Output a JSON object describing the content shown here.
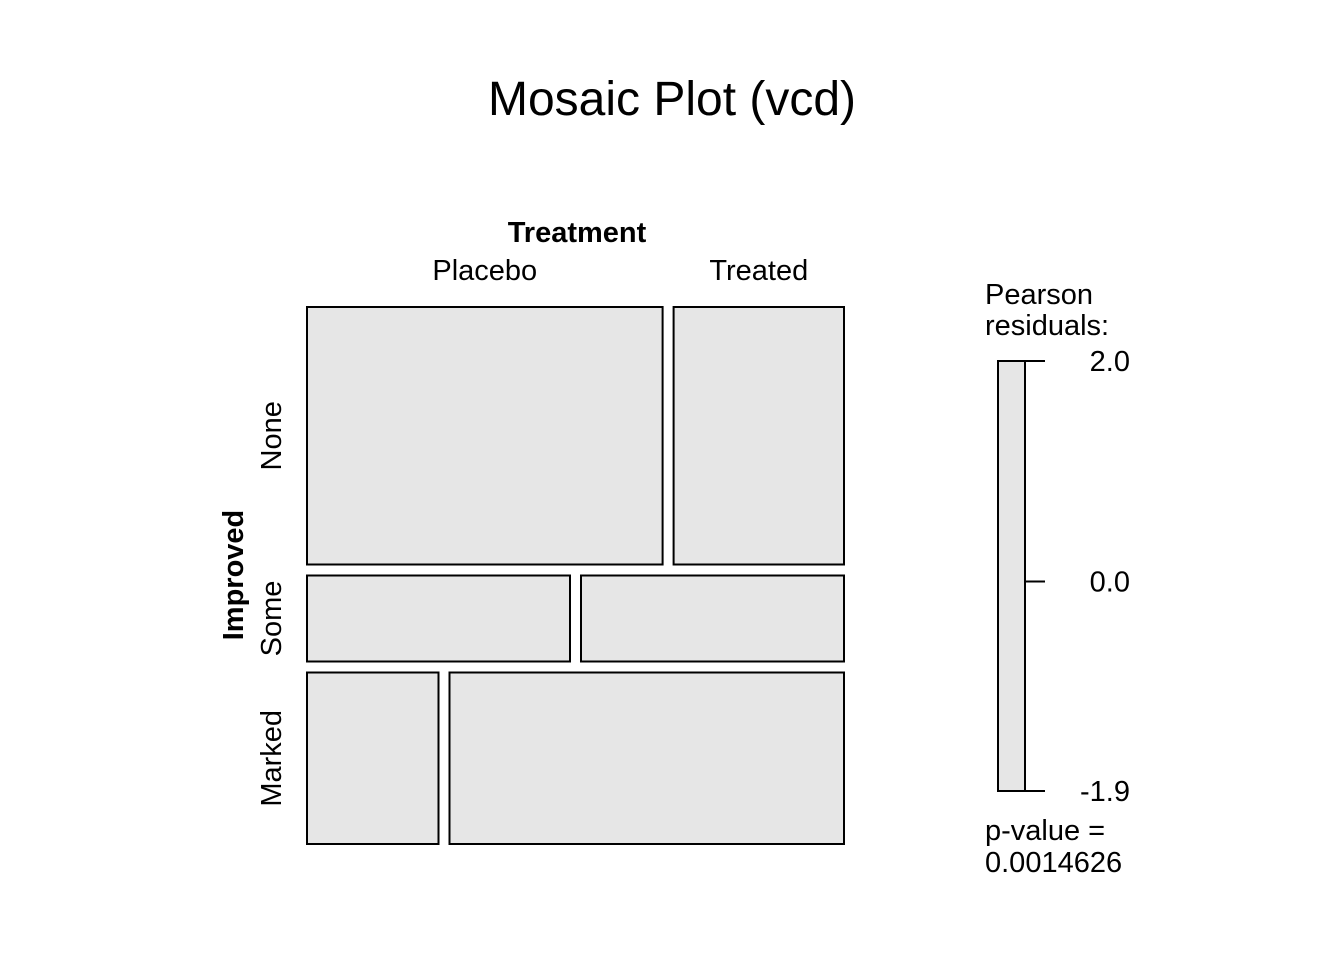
{
  "chart_data": {
    "type": "mosaic",
    "title": "Mosaic Plot (vcd)",
    "col_variable": "Treatment",
    "row_variable": "Improved",
    "columns": [
      "Placebo",
      "Treated"
    ],
    "rows": [
      "None",
      "Some",
      "Marked"
    ],
    "cells": [
      {
        "row": "None",
        "column": "Placebo",
        "proportion": 0.676
      },
      {
        "row": "None",
        "column": "Treated",
        "proportion": 0.324
      },
      {
        "row": "Some",
        "column": "Placebo",
        "proportion": 0.5
      },
      {
        "row": "Some",
        "column": "Treated",
        "proportion": 0.5
      },
      {
        "row": "Marked",
        "column": "Placebo",
        "proportion": 0.25
      },
      {
        "row": "Marked",
        "column": "Treated",
        "proportion": 0.75
      }
    ],
    "row_proportions": [
      0.5,
      0.167,
      0.333
    ],
    "cell_fill": "#e6e6e6",
    "legend": {
      "title_line1": "Pearson",
      "title_line2": "residuals:",
      "ticks": [
        "2.0",
        "0.0",
        "-1.9"
      ],
      "tick_values": [
        2.0,
        0.0,
        -1.9
      ],
      "range": [
        -1.9,
        2.0
      ],
      "pvalue_label": "p-value =",
      "pvalue": "0.0014626"
    }
  }
}
